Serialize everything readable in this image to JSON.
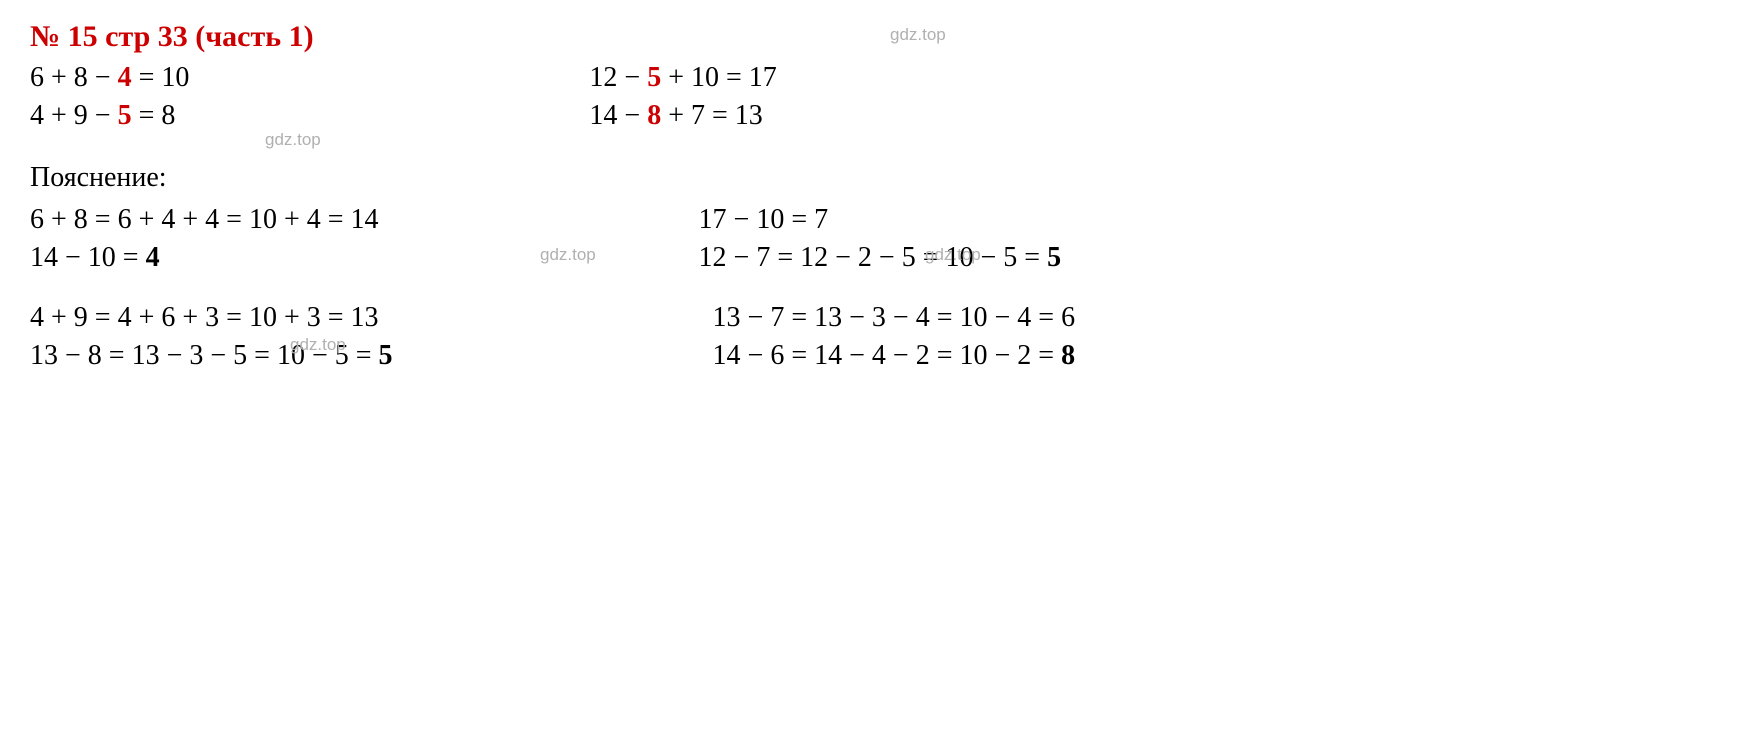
{
  "title": "№ 15 стр 33 (часть 1)",
  "topEquations": {
    "left": [
      {
        "prefix": "6 + 8 − ",
        "highlight": "4",
        "suffix": " = 10"
      },
      {
        "prefix": "4 + 9 − ",
        "highlight": "5",
        "suffix": " = 8"
      }
    ],
    "right": [
      {
        "prefix": "12 − ",
        "highlight": "5",
        "suffix": " + 10 = 17"
      },
      {
        "prefix": "14 − ",
        "highlight": "8",
        "suffix": " + 7 = 13"
      }
    ]
  },
  "explainLabel": "Пояснение:",
  "explainGroups": [
    {
      "left": [
        {
          "text": "6 + 8 = 6 + 4 + 4 = 10 + 4 = 14"
        },
        {
          "prefix": "14 − 10 = ",
          "bold": "4"
        }
      ],
      "right": [
        {
          "text": "17 − 10 = 7"
        },
        {
          "prefix": "12 − 7 = 12 − 2 − 5 = 10 − 5 = ",
          "bold": "5"
        }
      ]
    },
    {
      "left": [
        {
          "text": "4 + 9 = 4 + 6 + 3 = 10 + 3 = 13"
        },
        {
          "prefix": "13 − 8 = 13 − 3 − 5 = 10 − 5 = ",
          "bold": "5"
        }
      ],
      "right": [
        {
          "text": "13 − 7 = 13 − 3 − 4 = 10 − 4 = 6"
        },
        {
          "prefix": "14 − 6 = 14 − 4 − 2 = 10 − 2 = ",
          "bold": "8"
        }
      ]
    }
  ],
  "watermarkText": "gdz.top",
  "colors": {
    "titleRed": "#cc0000",
    "highlightRed": "#cc0000",
    "text": "#000000",
    "watermark": "#b0b0b0",
    "background": "#ffffff"
  },
  "typography": {
    "bodyFontSize": 28,
    "titleFontSize": 30,
    "watermarkFontSize": 17,
    "fontFamily": "Times New Roman"
  }
}
